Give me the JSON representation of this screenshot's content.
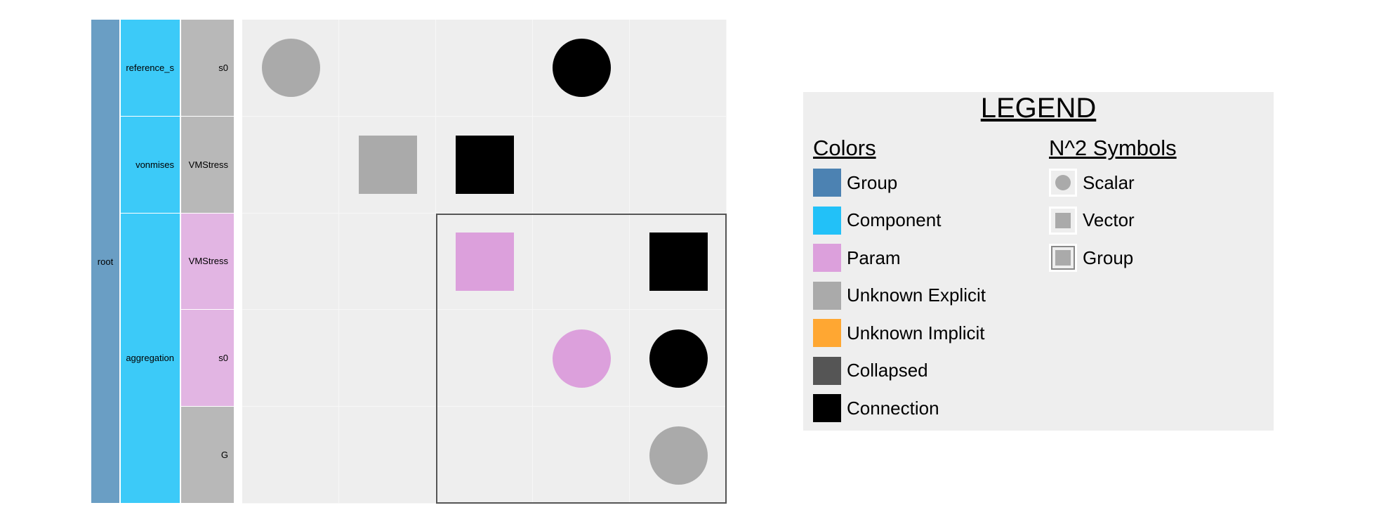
{
  "tree": {
    "root": {
      "label": "root",
      "color": "#6a9ec4"
    },
    "components": [
      {
        "label": "reference_s",
        "color": "#3ccaf8"
      },
      {
        "label": "vonmises",
        "color": "#3ccaf8"
      },
      {
        "label": "aggregation",
        "color": "#3ccaf8"
      }
    ],
    "variables": [
      {
        "label": "s0",
        "type": "unknown-explicit",
        "color": "#b8b8b8"
      },
      {
        "label": "VMStress",
        "type": "unknown-explicit",
        "color": "#b8b8b8"
      },
      {
        "label": "VMStress",
        "type": "param",
        "color": "#e2b5e3"
      },
      {
        "label": "s0",
        "type": "param",
        "color": "#e2b5e3"
      },
      {
        "label": "G",
        "type": "unknown-explicit",
        "color": "#b8b8b8"
      }
    ]
  },
  "matrix": {
    "size": 5,
    "cells": [
      {
        "row": 0,
        "col": 0,
        "shape": "scalar",
        "color": "#aaaaaa"
      },
      {
        "row": 0,
        "col": 3,
        "shape": "scalar",
        "color": "#000000"
      },
      {
        "row": 1,
        "col": 1,
        "shape": "vector",
        "color": "#aaaaaa"
      },
      {
        "row": 1,
        "col": 2,
        "shape": "vector",
        "color": "#000000"
      },
      {
        "row": 2,
        "col": 2,
        "shape": "vector",
        "color": "#dca0dc"
      },
      {
        "row": 2,
        "col": 4,
        "shape": "vector",
        "color": "#000000"
      },
      {
        "row": 3,
        "col": 3,
        "shape": "scalar",
        "color": "#dca0dc"
      },
      {
        "row": 3,
        "col": 4,
        "shape": "scalar",
        "color": "#000000"
      },
      {
        "row": 4,
        "col": 4,
        "shape": "scalar",
        "color": "#aaaaaa"
      }
    ],
    "highlight": {
      "row_start": 2,
      "row_end": 4,
      "col_start": 2,
      "col_end": 4
    }
  },
  "legend": {
    "title": "LEGEND",
    "colors_title": "Colors",
    "colors": [
      {
        "label": "Group",
        "color": "#4c82b2"
      },
      {
        "label": "Component",
        "color": "#22c1f8"
      },
      {
        "label": "Param",
        "color": "#dca0dc"
      },
      {
        "label": "Unknown Explicit",
        "color": "#aaaaaa"
      },
      {
        "label": "Unknown Implicit",
        "color": "#ffa732"
      },
      {
        "label": "Collapsed",
        "color": "#555555"
      },
      {
        "label": "Connection",
        "color": "#000000"
      }
    ],
    "symbols_title": "N^2 Symbols",
    "symbols": [
      {
        "label": "Scalar",
        "shape": "scalar"
      },
      {
        "label": "Vector",
        "shape": "vector"
      },
      {
        "label": "Group",
        "shape": "group"
      }
    ]
  }
}
